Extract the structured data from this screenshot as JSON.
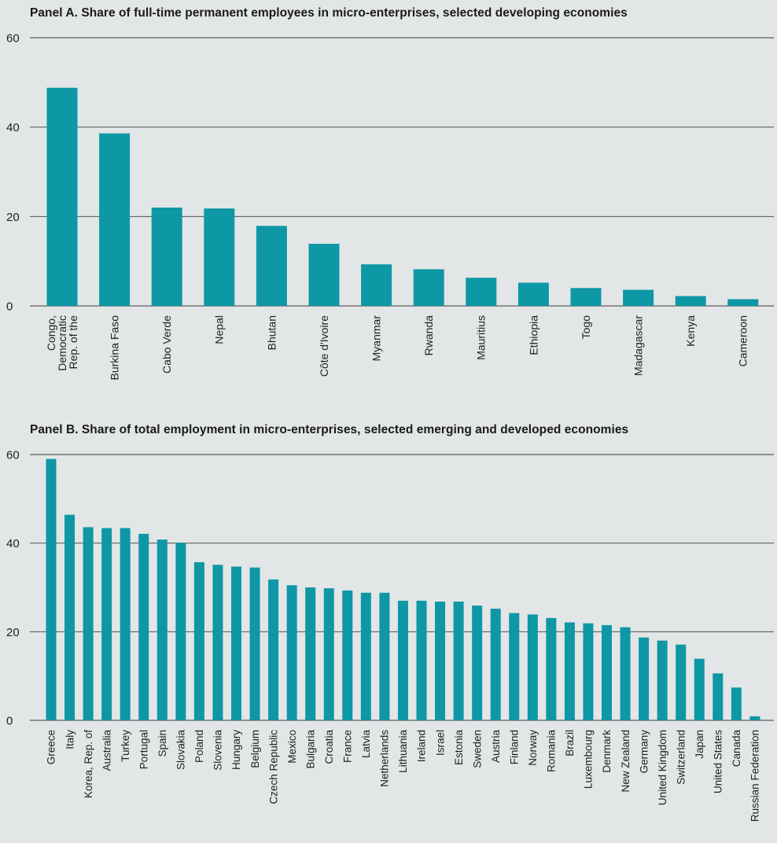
{
  "colors": {
    "bar": "#0e97a5",
    "grid": "#3c3c3c",
    "background": "#e3e6e6"
  },
  "panels": [
    {
      "title": "Panel A.  Share of full-time permanent employees in micro-enterprises, selected developing economies"
    },
    {
      "title": "Panel B.  Share of total employment in micro-enterprises, selected emerging and developed economies"
    }
  ],
  "chart_data": [
    {
      "type": "bar",
      "title": "Panel A.  Share of full-time permanent employees in micro-enterprises, selected developing economies",
      "categories": [
        [
          "Congo,",
          "Democratic",
          "Rep. of the"
        ],
        [
          "Burkina Faso"
        ],
        [
          "Cabo Verde"
        ],
        [
          "Nepal"
        ],
        [
          "Bhutan"
        ],
        [
          "Côte d'Ivoire"
        ],
        [
          "Myanmar"
        ],
        [
          "Rwanda"
        ],
        [
          "Mauritius"
        ],
        [
          "Ethiopia"
        ],
        [
          "Togo"
        ],
        [
          "Madagascar"
        ],
        [
          "Kenya"
        ],
        [
          "Cameroon"
        ]
      ],
      "values": [
        48.8,
        38.6,
        22.0,
        21.8,
        17.9,
        13.9,
        9.3,
        8.2,
        6.3,
        5.2,
        4.0,
        3.6,
        2.2,
        1.5
      ],
      "ylim": [
        0,
        60
      ],
      "yticks": [
        0,
        20,
        40,
        60
      ],
      "grid": true,
      "xlabel": "",
      "ylabel": ""
    },
    {
      "type": "bar",
      "title": "Panel B.  Share of total employment in micro-enterprises, selected emerging and developed economies",
      "categories": [
        [
          "Greece"
        ],
        [
          "Italy"
        ],
        [
          "Korea, Rep. of"
        ],
        [
          "Australia"
        ],
        [
          "Turkey"
        ],
        [
          "Portugal"
        ],
        [
          "Spain"
        ],
        [
          "Slovakia"
        ],
        [
          "Poland"
        ],
        [
          "Slovenia"
        ],
        [
          "Hungary"
        ],
        [
          "Belgium"
        ],
        [
          "Czech Republic"
        ],
        [
          "Mexico"
        ],
        [
          "Bulgaria"
        ],
        [
          "Croatia"
        ],
        [
          "France"
        ],
        [
          "Latvia"
        ],
        [
          "Netherlands"
        ],
        [
          "Lithuania"
        ],
        [
          "Ireland"
        ],
        [
          "Israel"
        ],
        [
          "Estonia"
        ],
        [
          "Sweden"
        ],
        [
          "Austria"
        ],
        [
          "Finland"
        ],
        [
          "Norway"
        ],
        [
          "Romania"
        ],
        [
          "Brazil"
        ],
        [
          "Luxembourg"
        ],
        [
          "Denmark"
        ],
        [
          "New Zealand"
        ],
        [
          "Germany"
        ],
        [
          "United Kingdom"
        ],
        [
          "Switzerland"
        ],
        [
          "Japan"
        ],
        [
          "United States"
        ],
        [
          "Canada"
        ],
        [
          "Russian Federation"
        ]
      ],
      "values": [
        59.0,
        46.4,
        43.6,
        43.4,
        43.4,
        42.1,
        40.8,
        40.1,
        35.7,
        35.1,
        34.7,
        34.5,
        31.8,
        30.5,
        30.0,
        29.8,
        29.3,
        28.8,
        28.8,
        27.0,
        27.0,
        26.8,
        26.8,
        25.9,
        25.2,
        24.2,
        23.9,
        23.1,
        22.1,
        21.9,
        21.5,
        21.0,
        18.7,
        18.0,
        17.1,
        13.9,
        10.6,
        7.4,
        0.9
      ],
      "ylim": [
        0,
        60
      ],
      "yticks": [
        0,
        20,
        40,
        60
      ],
      "grid": true,
      "xlabel": "",
      "ylabel": ""
    }
  ]
}
